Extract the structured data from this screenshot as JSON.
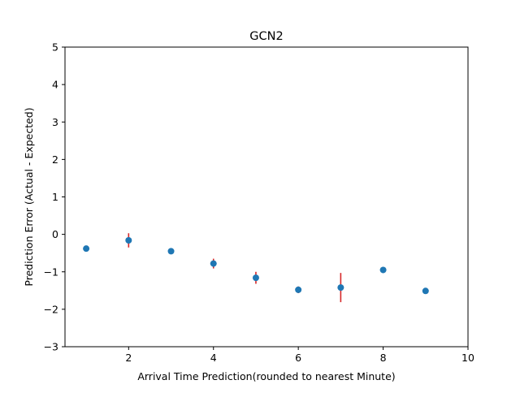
{
  "chart_data": {
    "type": "scatter",
    "title": "GCN2",
    "xlabel": "Arrival Time Prediction(rounded to nearest Minute)",
    "ylabel": "Prediction Error (Actual - Expected)",
    "xlim": [
      0.5,
      10
    ],
    "ylim": [
      -3,
      5
    ],
    "xticks": [
      2,
      4,
      6,
      8,
      10
    ],
    "yticks": [
      -3,
      -2,
      -1,
      0,
      1,
      2,
      3,
      4,
      5
    ],
    "grid": false,
    "legend": "none",
    "point_color": "#1f77b4",
    "errorbar_color": "#d62728",
    "points": [
      {
        "x": 1,
        "y": -0.38,
        "err": 0.06
      },
      {
        "x": 2,
        "y": -0.16,
        "err": 0.19
      },
      {
        "x": 3,
        "y": -0.45,
        "err": 0.07
      },
      {
        "x": 4,
        "y": -0.78,
        "err": 0.13
      },
      {
        "x": 5,
        "y": -1.16,
        "err": 0.16
      },
      {
        "x": 6,
        "y": -1.48,
        "err": 0.09
      },
      {
        "x": 7,
        "y": -1.42,
        "err": 0.39
      },
      {
        "x": 8,
        "y": -0.95,
        "err": 0.0
      },
      {
        "x": 9,
        "y": -1.51,
        "err": 0.03
      }
    ]
  }
}
